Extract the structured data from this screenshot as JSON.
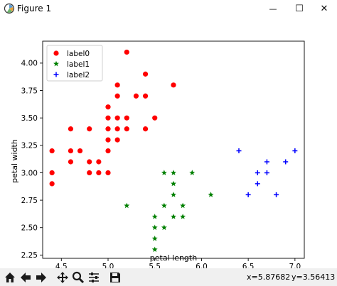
{
  "window": {
    "title": "Figure 1",
    "minimize_glyph": "—",
    "maximize_glyph": "☐",
    "close_glyph": "✕"
  },
  "toolbar": {
    "icons": [
      "home-icon",
      "back-arrow-icon",
      "forward-arrow-icon",
      "pan-icon",
      "zoom-icon",
      "configure-subplots-icon",
      "save-icon"
    ],
    "x_readout": "x=5.87682",
    "y_readout": "y=3.56413"
  },
  "chart_data": {
    "type": "scatter",
    "xlabel": "petal length",
    "ylabel": "petal width",
    "xlim": [
      4.3,
      7.1
    ],
    "ylim": [
      2.22,
      4.2
    ],
    "x_ticks": [
      4.5,
      5.0,
      5.5,
      6.0,
      6.5,
      7.0
    ],
    "x_tick_labels": [
      "4.5",
      "5.0",
      "5.5",
      "6.0",
      "6.5",
      "7.0"
    ],
    "y_ticks": [
      2.25,
      2.5,
      2.75,
      3.0,
      3.25,
      3.5,
      3.75,
      4.0
    ],
    "y_tick_labels": [
      "2.25",
      "2.50",
      "2.75",
      "3.00",
      "3.25",
      "3.50",
      "3.75",
      "4.00"
    ],
    "grid": false,
    "legend_position": "upper-left",
    "series": [
      {
        "name": "label0",
        "marker": "circle",
        "color": "#ff0000",
        "points": [
          [
            4.4,
            2.9
          ],
          [
            4.4,
            3.0
          ],
          [
            4.4,
            3.2
          ],
          [
            4.6,
            3.1
          ],
          [
            4.6,
            3.2
          ],
          [
            4.6,
            3.4
          ],
          [
            4.7,
            3.2
          ],
          [
            4.8,
            3.0
          ],
          [
            4.8,
            3.1
          ],
          [
            4.8,
            3.4
          ],
          [
            4.9,
            3.0
          ],
          [
            4.9,
            3.1
          ],
          [
            5.0,
            3.0
          ],
          [
            5.0,
            3.2
          ],
          [
            5.0,
            3.3
          ],
          [
            5.0,
            3.4
          ],
          [
            5.0,
            3.5
          ],
          [
            5.0,
            3.6
          ],
          [
            5.1,
            3.3
          ],
          [
            5.1,
            3.4
          ],
          [
            5.1,
            3.5
          ],
          [
            5.1,
            3.7
          ],
          [
            5.1,
            3.8
          ],
          [
            5.2,
            3.4
          ],
          [
            5.2,
            3.5
          ],
          [
            5.2,
            4.1
          ],
          [
            5.3,
            3.7
          ],
          [
            5.4,
            3.4
          ],
          [
            5.4,
            3.7
          ],
          [
            5.4,
            3.9
          ],
          [
            5.5,
            3.5
          ],
          [
            5.7,
            3.8
          ]
        ]
      },
      {
        "name": "label1",
        "marker": "star",
        "color": "#008000",
        "points": [
          [
            5.2,
            2.7
          ],
          [
            5.5,
            2.3
          ],
          [
            5.5,
            2.4
          ],
          [
            5.5,
            2.5
          ],
          [
            5.5,
            2.6
          ],
          [
            5.6,
            2.5
          ],
          [
            5.6,
            2.7
          ],
          [
            5.6,
            3.0
          ],
          [
            5.7,
            2.6
          ],
          [
            5.7,
            2.8
          ],
          [
            5.7,
            2.9
          ],
          [
            5.7,
            3.0
          ],
          [
            5.8,
            2.6
          ],
          [
            5.8,
            2.7
          ],
          [
            5.9,
            3.0
          ],
          [
            6.1,
            2.8
          ]
        ]
      },
      {
        "name": "label2",
        "marker": "plus",
        "color": "#0000ff",
        "points": [
          [
            6.4,
            3.2
          ],
          [
            6.5,
            2.8
          ],
          [
            6.6,
            2.9
          ],
          [
            6.6,
            3.0
          ],
          [
            6.7,
            3.0
          ],
          [
            6.7,
            3.1
          ],
          [
            6.8,
            2.8
          ],
          [
            6.9,
            3.1
          ],
          [
            7.0,
            3.2
          ]
        ]
      }
    ]
  }
}
